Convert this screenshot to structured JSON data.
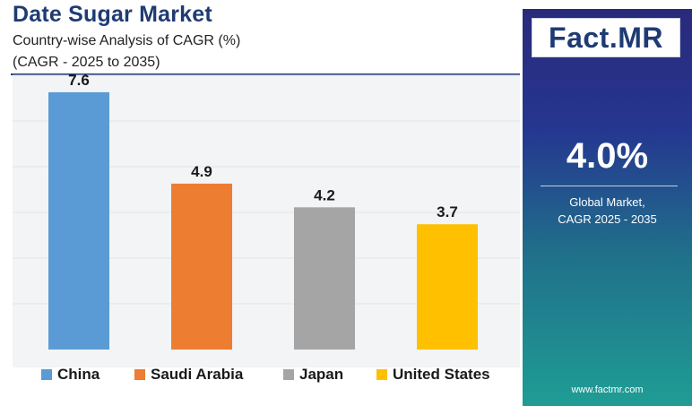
{
  "header": {
    "title": "Date Sugar Market",
    "subtitle_line1": "Country-wise Analysis of CAGR (%)",
    "subtitle_line2": "(CAGR - 2025 to 2035)"
  },
  "sidebar": {
    "logo_main": "Fact",
    "logo_dot": ".",
    "logo_suffix": "MR",
    "global_value": "4.0%",
    "global_label_line1": "Global Market,",
    "global_label_line2": "CAGR 2025 - 2035",
    "website": "www.factmr.com"
  },
  "chart_data": {
    "type": "bar",
    "categories": [
      "China",
      "Saudi Arabia",
      "Japan",
      "United States"
    ],
    "values": [
      7.6,
      4.9,
      4.2,
      3.7
    ],
    "data_labels": [
      "7.6",
      "4.9",
      "4.2",
      "3.7"
    ],
    "colors": [
      "#5b9bd5",
      "#ed7d31",
      "#a5a5a5",
      "#ffc000"
    ],
    "ylim": [
      0,
      8.1
    ],
    "legend_position": "bottom",
    "grid": true,
    "title": "",
    "xlabel": "",
    "ylabel": ""
  }
}
